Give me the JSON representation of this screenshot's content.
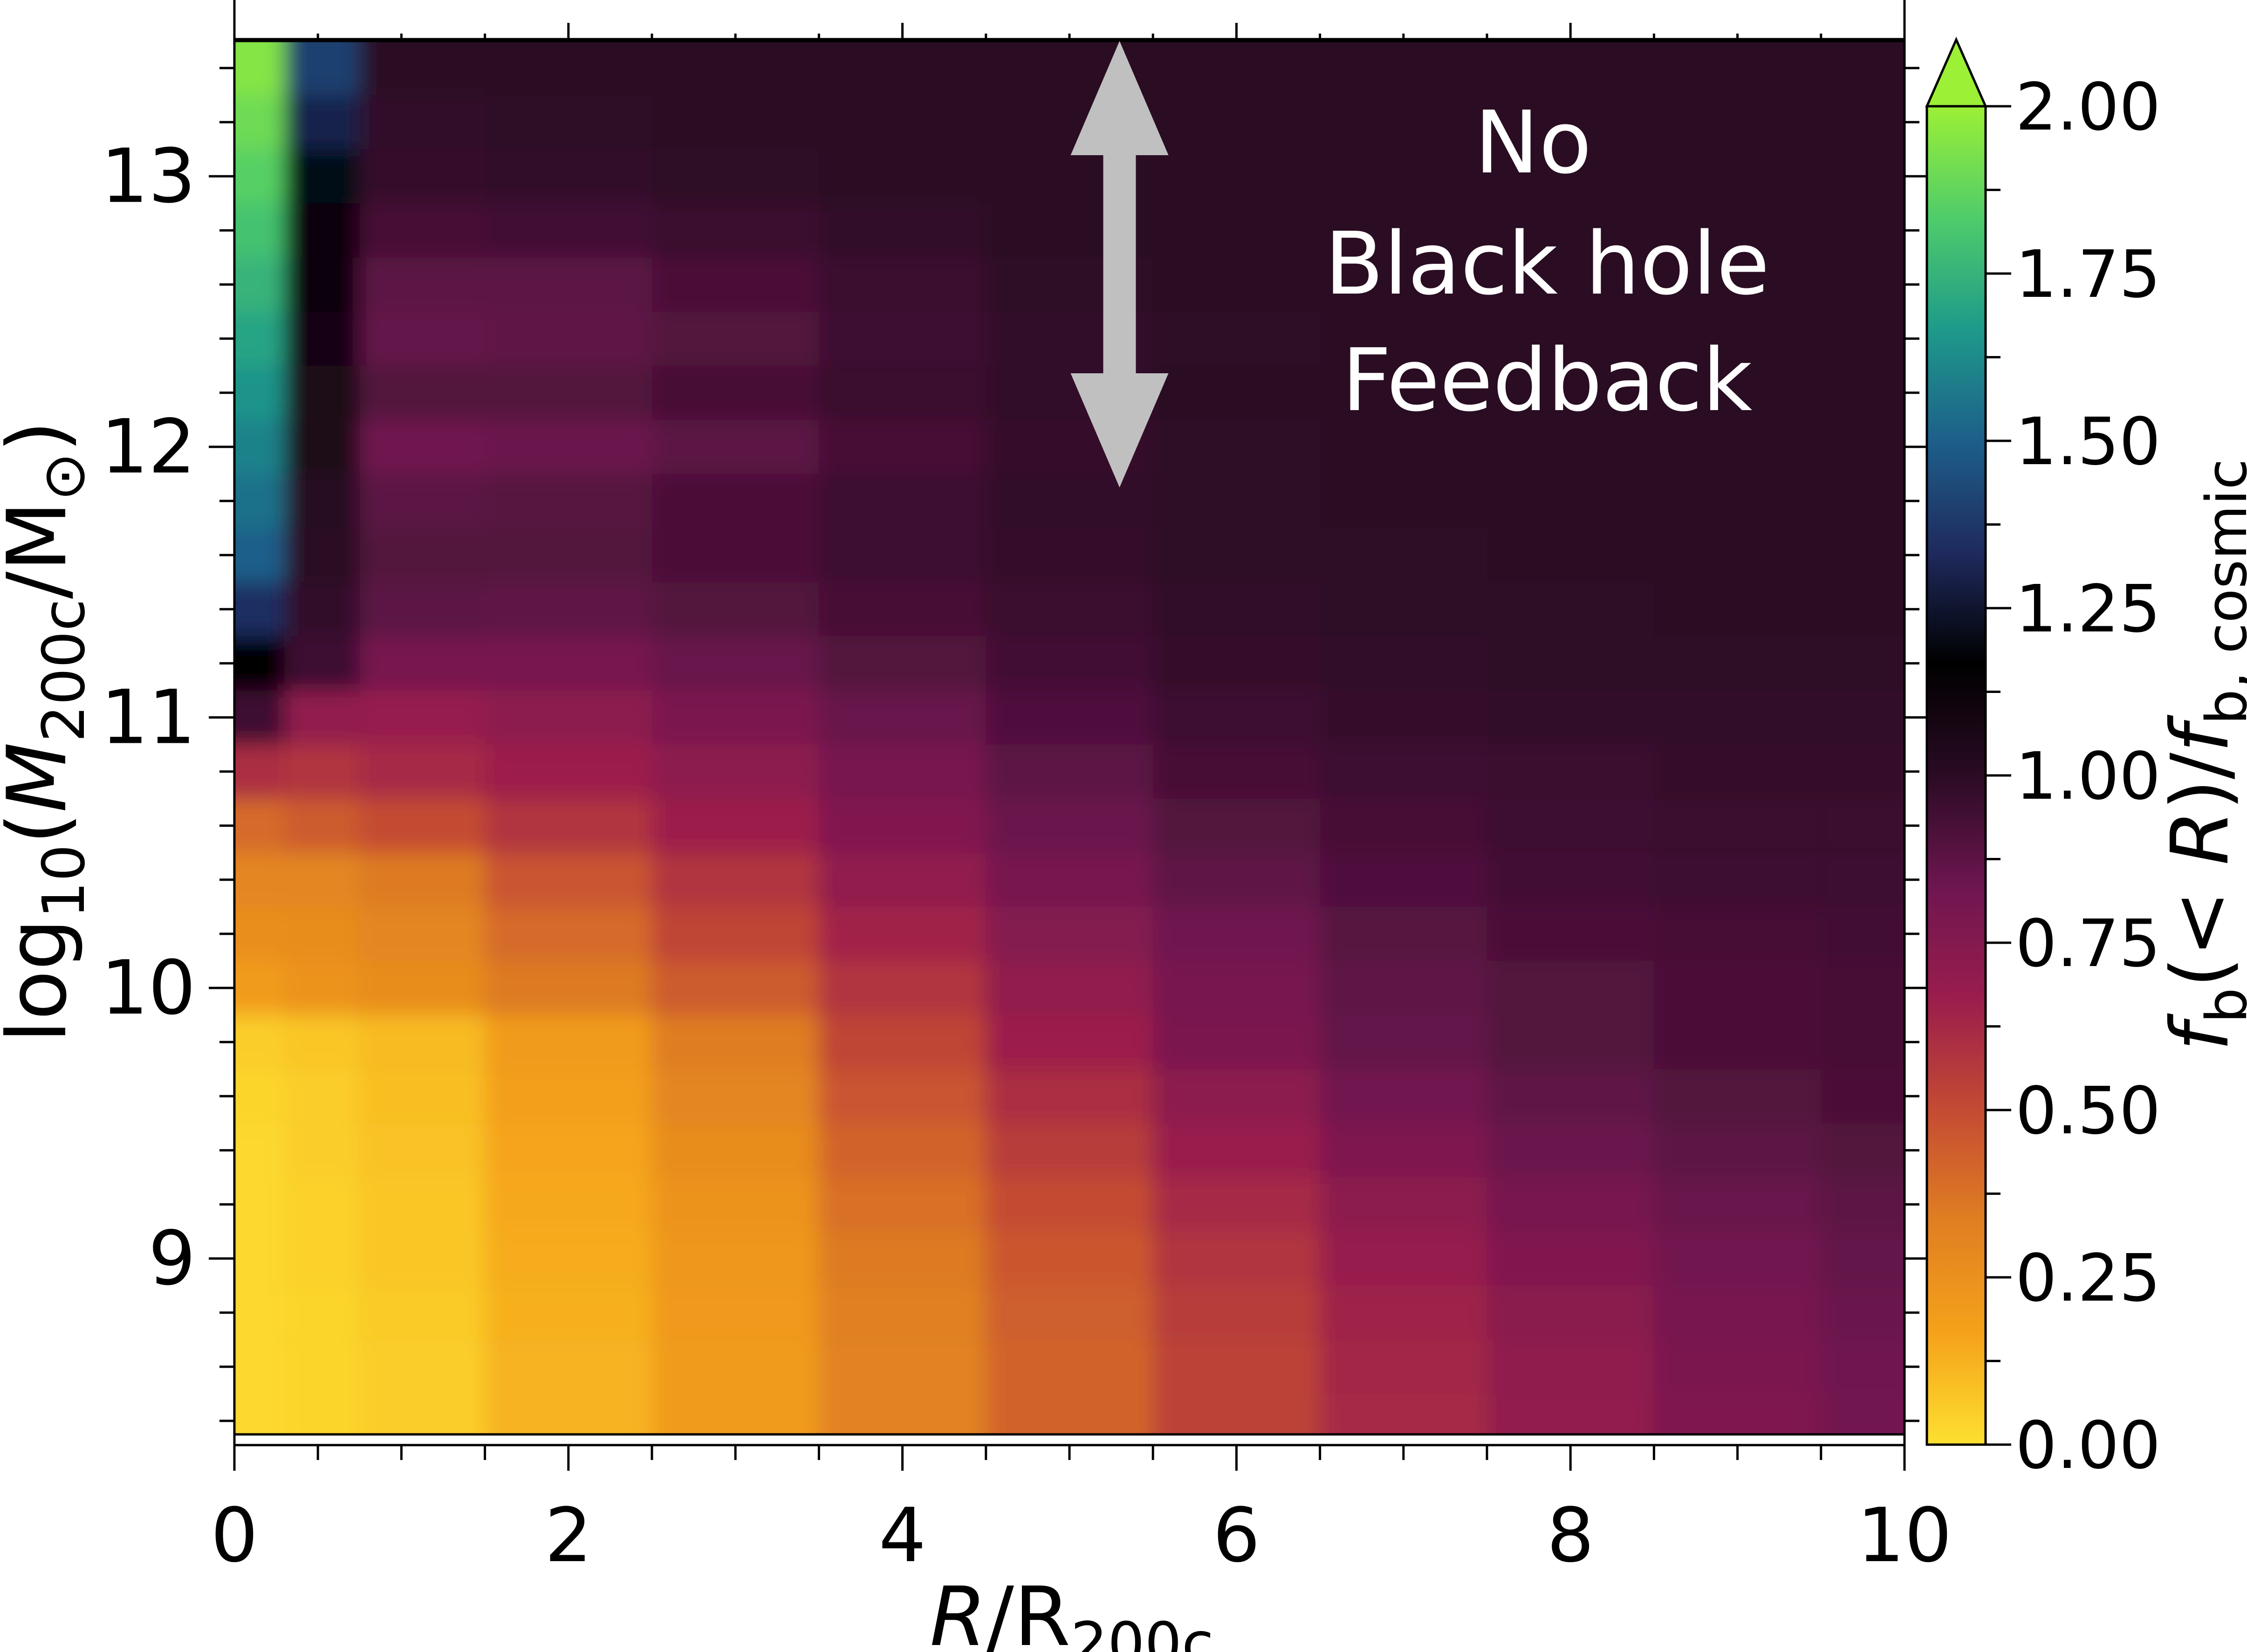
{
  "chart_data": {
    "type": "heatmap",
    "title": "",
    "xlabel": {
      "main": "R",
      "sep": "/R",
      "sub": "200c"
    },
    "ylabel": {
      "pre": "log",
      "pre_sub": "10",
      "paren_open": "(",
      "main": "M",
      "main_sub": "200c",
      "unit": "/M",
      "unit_sub": "⊙",
      "paren_close": ")"
    },
    "xlim": [
      0,
      10
    ],
    "ylim": [
      8.35,
      13.5
    ],
    "xticks": [
      "0",
      "2",
      "4",
      "6",
      "8",
      "10"
    ],
    "yticks": [
      "9",
      "10",
      "11",
      "12",
      "13"
    ],
    "colorbar": {
      "label": {
        "f1": "f",
        "f1_sub": "b",
        "mid": "(< ",
        "r": "R",
        "close": ")/",
        "f2": "f",
        "f2_sub": "b, cosmic"
      },
      "range": [
        0,
        2
      ],
      "extend": "max",
      "ticks": [
        "0.00",
        "0.25",
        "0.50",
        "0.75",
        "1.00",
        "1.25",
        "1.50",
        "1.75",
        "2.00"
      ],
      "colormap": [
        "#fde030",
        "#f5a21a",
        "#e07f22",
        "#c44b33",
        "#9a1d4d",
        "#6e1650",
        "#2a0b24",
        "#000000",
        "#1f2a5e",
        "#1d5f8a",
        "#1e9a8a",
        "#4fcc6a",
        "#9cf035"
      ],
      "extend_color": "#9cf035"
    },
    "annotation": {
      "lines": [
        "No",
        "Black hole",
        "Feedback"
      ],
      "arrow_x": 5.3,
      "arrow_y_range": [
        11.85,
        13.5
      ],
      "arrow_color": "#c0c0c0"
    },
    "mass_bins": [
      8.4,
      8.6,
      8.8,
      9.0,
      9.2,
      9.4,
      9.6,
      9.8,
      10.0,
      10.2,
      10.4,
      10.6,
      10.8,
      11.0,
      11.2,
      11.4,
      11.6,
      11.8,
      12.0,
      12.2,
      12.4,
      12.6,
      12.8,
      13.0,
      13.2,
      13.4
    ],
    "radius_bins": [
      0.1,
      0.5,
      1,
      2,
      3,
      4,
      5,
      6,
      7,
      8,
      9,
      10
    ],
    "baryon_fraction": [
      [
        0.02,
        0.03,
        0.05,
        0.12,
        0.2,
        0.32,
        0.42,
        0.53,
        0.62,
        0.7,
        0.77,
        0.82
      ],
      [
        0.02,
        0.03,
        0.05,
        0.12,
        0.2,
        0.32,
        0.42,
        0.53,
        0.63,
        0.71,
        0.78,
        0.83
      ],
      [
        0.02,
        0.03,
        0.06,
        0.13,
        0.21,
        0.33,
        0.44,
        0.55,
        0.65,
        0.73,
        0.8,
        0.84
      ],
      [
        0.02,
        0.04,
        0.07,
        0.14,
        0.22,
        0.35,
        0.46,
        0.58,
        0.68,
        0.76,
        0.82,
        0.86
      ],
      [
        0.02,
        0.04,
        0.07,
        0.15,
        0.24,
        0.38,
        0.5,
        0.62,
        0.72,
        0.8,
        0.85,
        0.88
      ],
      [
        0.02,
        0.05,
        0.08,
        0.16,
        0.27,
        0.42,
        0.55,
        0.67,
        0.77,
        0.84,
        0.88,
        0.9
      ],
      [
        0.03,
        0.05,
        0.09,
        0.18,
        0.3,
        0.47,
        0.6,
        0.72,
        0.82,
        0.87,
        0.9,
        0.92
      ],
      [
        0.05,
        0.07,
        0.1,
        0.2,
        0.34,
        0.52,
        0.66,
        0.78,
        0.86,
        0.9,
        0.92,
        0.93
      ],
      [
        0.2,
        0.24,
        0.27,
        0.35,
        0.45,
        0.58,
        0.7,
        0.8,
        0.87,
        0.9,
        0.92,
        0.93
      ],
      [
        0.26,
        0.27,
        0.3,
        0.4,
        0.52,
        0.64,
        0.75,
        0.83,
        0.89,
        0.92,
        0.93,
        0.94
      ],
      [
        0.3,
        0.3,
        0.35,
        0.47,
        0.58,
        0.7,
        0.8,
        0.87,
        0.91,
        0.94,
        0.95,
        0.95
      ],
      [
        0.4,
        0.45,
        0.5,
        0.58,
        0.66,
        0.76,
        0.84,
        0.9,
        0.93,
        0.95,
        0.96,
        0.96
      ],
      [
        0.6,
        0.58,
        0.62,
        0.66,
        0.72,
        0.8,
        0.88,
        0.93,
        0.95,
        0.96,
        0.97,
        0.97
      ],
      [
        0.95,
        0.7,
        0.68,
        0.72,
        0.78,
        0.85,
        0.91,
        0.95,
        0.97,
        0.98,
        0.98,
        0.98
      ],
      [
        1.15,
        0.95,
        0.8,
        0.8,
        0.85,
        0.9,
        0.94,
        0.97,
        0.98,
        0.99,
        0.99,
        0.99
      ],
      [
        1.35,
        0.98,
        0.88,
        0.87,
        0.9,
        0.93,
        0.96,
        0.98,
        0.99,
        0.99,
        1.0,
        1.0
      ],
      [
        1.5,
        1.0,
        0.9,
        0.9,
        0.92,
        0.95,
        0.97,
        0.99,
        0.99,
        1.0,
        1.0,
        1.0
      ],
      [
        1.55,
        1.02,
        0.88,
        0.89,
        0.92,
        0.95,
        0.98,
        0.99,
        1.0,
        1.0,
        1.0,
        1.0
      ],
      [
        1.6,
        1.05,
        0.83,
        0.84,
        0.88,
        0.93,
        0.97,
        0.99,
        1.0,
        1.0,
        1.0,
        1.0
      ],
      [
        1.65,
        1.05,
        0.9,
        0.9,
        0.93,
        0.96,
        0.98,
        1.0,
        1.0,
        1.0,
        1.0,
        1.0
      ],
      [
        1.7,
        1.08,
        0.86,
        0.87,
        0.9,
        0.95,
        0.98,
        0.99,
        1.0,
        1.0,
        1.0,
        1.0
      ],
      [
        1.75,
        1.1,
        0.88,
        0.88,
        0.92,
        0.96,
        0.99,
        1.0,
        1.0,
        1.0,
        1.0,
        1.0
      ],
      [
        1.8,
        1.12,
        0.93,
        0.94,
        0.96,
        0.98,
        1.0,
        1.0,
        1.0,
        1.0,
        1.0,
        1.0
      ],
      [
        1.85,
        1.2,
        0.97,
        0.98,
        0.99,
        1.0,
        1.0,
        1.0,
        1.0,
        1.0,
        1.0,
        1.0
      ],
      [
        1.9,
        1.3,
        0.98,
        0.99,
        1.0,
        1.0,
        1.0,
        1.0,
        1.0,
        1.0,
        1.0,
        1.0
      ],
      [
        1.95,
        1.4,
        1.0,
        1.0,
        1.0,
        1.0,
        1.0,
        1.0,
        1.0,
        1.0,
        1.0,
        1.0
      ]
    ]
  }
}
